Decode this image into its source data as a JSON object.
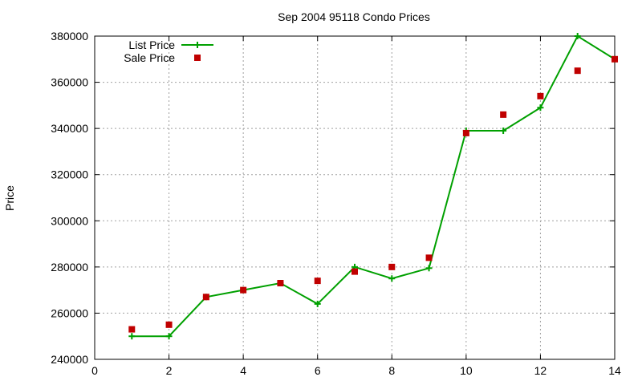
{
  "chart_data": {
    "type": "line",
    "title": "Sep 2004 95118 Condo Prices",
    "xlabel": "",
    "ylabel": "Price",
    "xlim": [
      0,
      14
    ],
    "ylim": [
      240000,
      380000
    ],
    "x_ticks": [
      0,
      2,
      4,
      6,
      8,
      10,
      12,
      14
    ],
    "y_ticks": [
      240000,
      260000,
      280000,
      300000,
      320000,
      340000,
      360000,
      380000
    ],
    "grid": true,
    "legend_position": "top-left",
    "series": [
      {
        "name": "List Price",
        "style": "linespoints",
        "marker": "plus",
        "color": "#00a000",
        "x": [
          1,
          2,
          3,
          4,
          5,
          6,
          7,
          8,
          9,
          10,
          11,
          12,
          13,
          14
        ],
        "y": [
          250000,
          250000,
          267000,
          270000,
          273000,
          264000,
          280000,
          275000,
          279500,
          339000,
          339000,
          349000,
          380000,
          370000
        ]
      },
      {
        "name": "Sale Price",
        "style": "points",
        "marker": "square",
        "color": "#c00000",
        "x": [
          1,
          2,
          3,
          4,
          5,
          6,
          7,
          8,
          9,
          10,
          11,
          12,
          13,
          14
        ],
        "y": [
          253000,
          255000,
          267000,
          270000,
          273000,
          274000,
          278000,
          280000,
          284000,
          338000,
          346000,
          354000,
          365000,
          370000
        ]
      }
    ]
  }
}
